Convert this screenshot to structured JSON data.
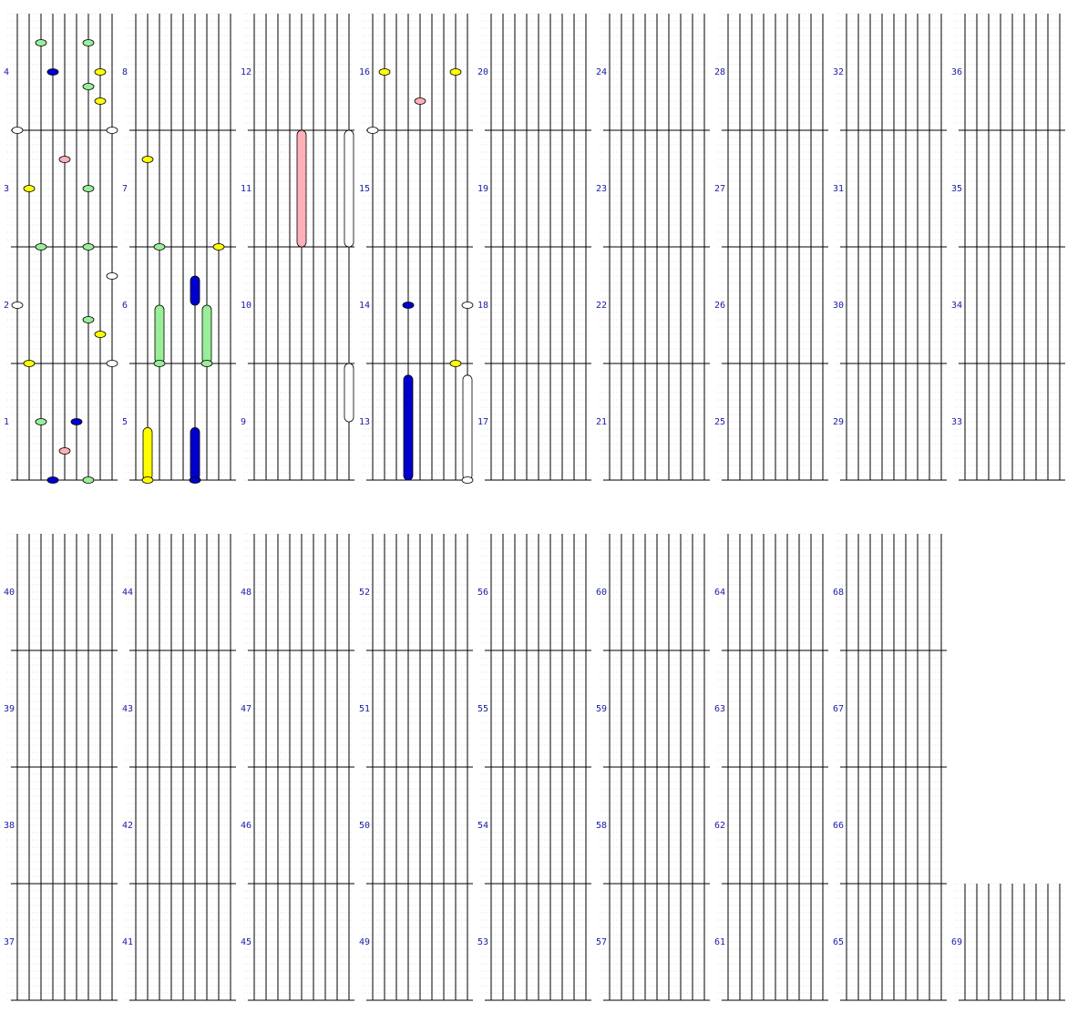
{
  "app": {
    "title": "Rhythm chart — notes per measure"
  },
  "colors": {
    "background": "#ffffff",
    "lane": "#000000",
    "measure_line": "#000000",
    "beat_grid": "#c8c8c8",
    "measure_number": "#1a1aa8",
    "note_white": "#ffffff",
    "note_yellow": "#ffff00",
    "note_green": "#99ee99",
    "note_pink": "#ffb0b8",
    "note_blue": "#0000cc",
    "note_light_blue": "#99d6ee"
  },
  "chart_data": {
    "type": "table",
    "lanes": 9,
    "lane_colors": [
      "white",
      "yellow",
      "green",
      "blue",
      "pink",
      "blue",
      "green",
      "yellow",
      "white"
    ],
    "measures": [
      {
        "n": 1,
        "notes": [
          [
            2,
            0.5
          ],
          [
            3,
            0
          ],
          [
            4,
            0.25
          ],
          [
            5,
            0.5
          ],
          [
            6,
            0
          ]
        ]
      },
      {
        "n": 2,
        "notes": [
          [
            0,
            0.5
          ],
          [
            1,
            0
          ],
          [
            6,
            0.375
          ],
          [
            7,
            0.25
          ],
          [
            8,
            0
          ],
          [
            8,
            0.75
          ]
        ]
      },
      {
        "n": 3,
        "notes": [
          [
            1,
            0.5
          ],
          [
            2,
            0
          ],
          [
            4,
            0.75
          ],
          [
            6,
            0
          ],
          [
            6,
            0.5
          ]
        ]
      },
      {
        "n": 4,
        "notes": [
          [
            0,
            0
          ],
          [
            2,
            0.75
          ],
          [
            3,
            0.5
          ],
          [
            6,
            0.75
          ],
          [
            6,
            0.375
          ],
          [
            7,
            0.5
          ],
          [
            7,
            0.25
          ],
          [
            8,
            0
          ]
        ]
      },
      {
        "n": 5,
        "notes": [
          [
            1,
            0
          ],
          [
            5,
            0
          ]
        ],
        "holds": [
          [
            1,
            0,
            0.45
          ],
          [
            5,
            0,
            0.45
          ]
        ]
      },
      {
        "n": 6,
        "notes": [
          [
            2,
            0
          ],
          [
            6,
            0
          ]
        ],
        "holds": [
          [
            2,
            0,
            0.5
          ],
          [
            6,
            0,
            0.5
          ],
          [
            5,
            0.5,
            0.25
          ]
        ]
      },
      {
        "n": 7,
        "notes": [
          [
            1,
            0.75
          ],
          [
            2,
            0
          ],
          [
            7,
            0
          ]
        ]
      },
      {
        "n": 9,
        "holds": [
          [
            8,
            0.5,
            0.5
          ]
        ]
      },
      {
        "n": 11,
        "holds": [
          [
            4,
            0,
            1
          ],
          [
            8,
            0,
            1
          ]
        ]
      },
      {
        "n": 13,
        "notes": [
          [
            8,
            0
          ]
        ],
        "holds": [
          [
            3,
            0,
            0.9
          ],
          [
            8,
            0,
            0.9
          ]
        ]
      },
      {
        "n": 14,
        "notes": [
          [
            3,
            0.5
          ],
          [
            7,
            0
          ],
          [
            8,
            0.5
          ]
        ]
      },
      {
        "n": 16,
        "notes": [
          [
            0,
            0
          ],
          [
            1,
            0.5
          ],
          [
            4,
            0.25
          ],
          [
            7,
            0.5
          ]
        ]
      }
    ],
    "title": ""
  }
}
